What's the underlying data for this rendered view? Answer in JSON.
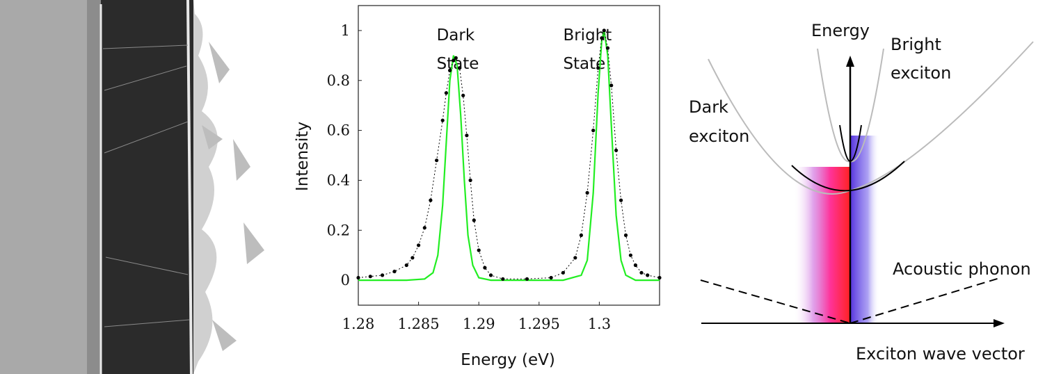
{
  "chart_data": {
    "type": "line",
    "xlabel": "Energy (eV)",
    "ylabel": "Intensity",
    "xlim": [
      1.28,
      1.305
    ],
    "ylim": [
      -0.1,
      1.1
    ],
    "xticks": [
      "1.28",
      "1.285",
      "1.29",
      "1.295",
      "1.3"
    ],
    "yticks": [
      "0",
      "0.2",
      "0.4",
      "0.6",
      "0.8",
      "1"
    ],
    "annotations": [
      {
        "text": [
          "Dark",
          "State"
        ],
        "x": 1.2865,
        "y": 0.9
      },
      {
        "text": [
          "Bright",
          "State"
        ],
        "x": 1.297,
        "y": 0.9
      }
    ],
    "series": [
      {
        "kind": "measured (black dots)",
        "color": "#000000",
        "points": [
          [
            1.28,
            0.01
          ],
          [
            1.281,
            0.015
          ],
          [
            1.282,
            0.02
          ],
          [
            1.283,
            0.035
          ],
          [
            1.284,
            0.06
          ],
          [
            1.2845,
            0.09
          ],
          [
            1.285,
            0.14
          ],
          [
            1.2855,
            0.21
          ],
          [
            1.286,
            0.32
          ],
          [
            1.2865,
            0.48
          ],
          [
            1.287,
            0.64
          ],
          [
            1.2873,
            0.75
          ],
          [
            1.2876,
            0.84
          ],
          [
            1.2879,
            0.88
          ],
          [
            1.2881,
            0.89
          ],
          [
            1.2884,
            0.85
          ],
          [
            1.2887,
            0.74
          ],
          [
            1.289,
            0.58
          ],
          [
            1.2893,
            0.4
          ],
          [
            1.2896,
            0.24
          ],
          [
            1.29,
            0.12
          ],
          [
            1.2905,
            0.05
          ],
          [
            1.291,
            0.02
          ],
          [
            1.292,
            0.005
          ],
          [
            1.294,
            0.005
          ],
          [
            1.296,
            0.01
          ],
          [
            1.297,
            0.03
          ],
          [
            1.298,
            0.09
          ],
          [
            1.2985,
            0.18
          ],
          [
            1.299,
            0.35
          ],
          [
            1.2995,
            0.6
          ],
          [
            1.2999,
            0.85
          ],
          [
            1.3002,
            0.97
          ],
          [
            1.3004,
            1.0
          ],
          [
            1.3007,
            0.93
          ],
          [
            1.301,
            0.78
          ],
          [
            1.3014,
            0.52
          ],
          [
            1.3018,
            0.32
          ],
          [
            1.3022,
            0.18
          ],
          [
            1.3026,
            0.1
          ],
          [
            1.303,
            0.06
          ],
          [
            1.3035,
            0.03
          ],
          [
            1.304,
            0.02
          ],
          [
            1.305,
            0.01
          ]
        ]
      },
      {
        "kind": "fit (green line)",
        "color": "#22ee22",
        "points": [
          [
            1.28,
            0.0
          ],
          [
            1.284,
            0.0
          ],
          [
            1.2855,
            0.005
          ],
          [
            1.2862,
            0.03
          ],
          [
            1.2866,
            0.1
          ],
          [
            1.287,
            0.3
          ],
          [
            1.2873,
            0.55
          ],
          [
            1.2876,
            0.8
          ],
          [
            1.2879,
            0.9
          ],
          [
            1.2882,
            0.86
          ],
          [
            1.2885,
            0.66
          ],
          [
            1.2888,
            0.4
          ],
          [
            1.2891,
            0.18
          ],
          [
            1.2895,
            0.06
          ],
          [
            1.29,
            0.01
          ],
          [
            1.291,
            0.0
          ],
          [
            1.297,
            0.0
          ],
          [
            1.2985,
            0.02
          ],
          [
            1.299,
            0.08
          ],
          [
            1.2995,
            0.35
          ],
          [
            1.2999,
            0.75
          ],
          [
            1.3002,
            0.96
          ],
          [
            1.3004,
            1.0
          ],
          [
            1.3007,
            0.9
          ],
          [
            1.301,
            0.62
          ],
          [
            1.3014,
            0.26
          ],
          [
            1.3018,
            0.08
          ],
          [
            1.3022,
            0.02
          ],
          [
            1.303,
            0.0
          ],
          [
            1.305,
            0.0
          ]
        ]
      }
    ]
  },
  "schematic": {
    "y_axis_label": "Energy",
    "x_axis_label": "Exciton wave vector",
    "bright_label": [
      "Bright",
      "exciton"
    ],
    "dark_label": [
      "Dark",
      "exciton"
    ],
    "phonon_label": "Acoustic phonon"
  }
}
